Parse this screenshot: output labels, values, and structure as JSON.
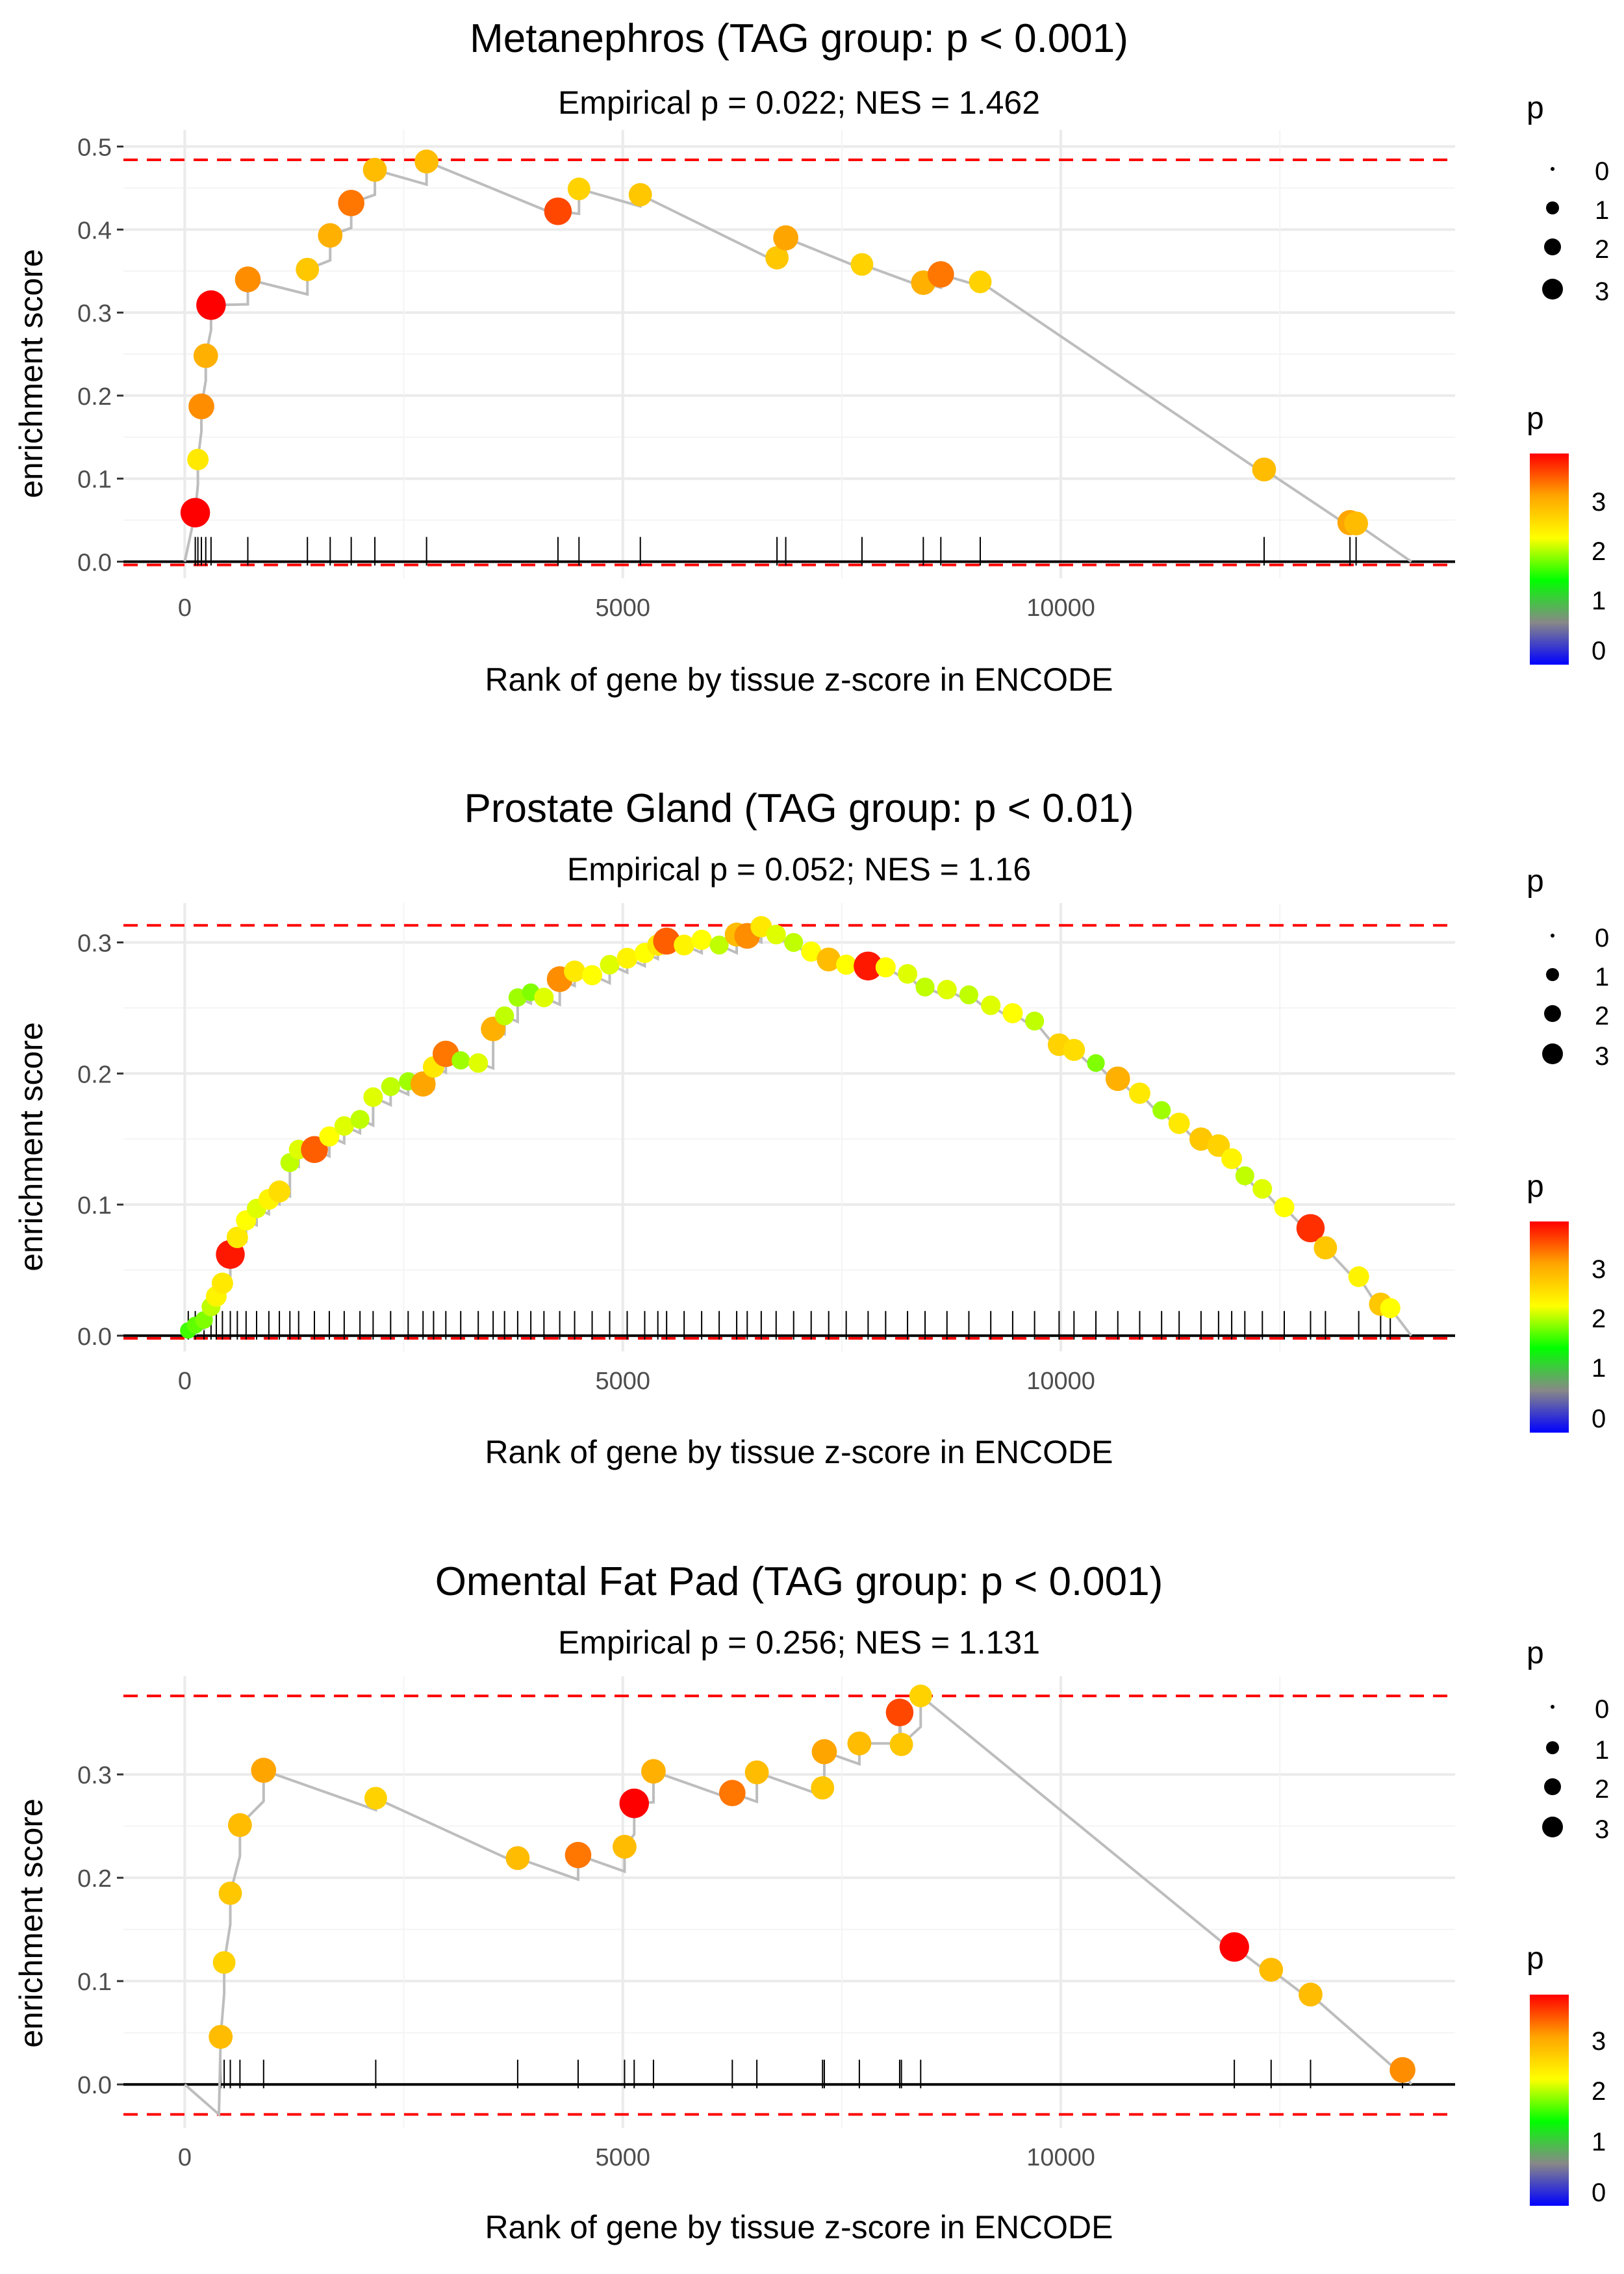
{
  "chart_data": [
    {
      "type": "scatter",
      "title": "Metanephros (TAG group: p < 0.001)",
      "subtitle": "Empirical p = 0.022; NES = 1.462",
      "xlabel": "Rank of gene by tissue z-score in ENCODE",
      "ylabel": "enrichment score",
      "xlim": [
        -700,
        14500
      ],
      "ylim": [
        -0.02,
        0.52
      ],
      "xticks": [
        0,
        5000,
        10000
      ],
      "xtick_labels": [
        "0",
        "5000",
        "10000"
      ],
      "yticks": [
        0.0,
        0.1,
        0.2,
        0.3,
        0.4,
        0.5
      ],
      "ytick_labels": [
        "0.0",
        "0.1",
        "0.2",
        "0.3",
        "0.4",
        "0.5"
      ],
      "hlines": {
        "max": 0.484,
        "min": -0.004,
        "zero": 0.0
      },
      "end_x": 14000,
      "points": [
        {
          "x": 120,
          "y": 0.059,
          "p": 3.9
        },
        {
          "x": 150,
          "y": 0.123,
          "p": 2.6
        },
        {
          "x": 190,
          "y": 0.187,
          "p": 3.3
        },
        {
          "x": 240,
          "y": 0.248,
          "p": 3.1
        },
        {
          "x": 300,
          "y": 0.309,
          "p": 3.9
        },
        {
          "x": 720,
          "y": 0.34,
          "p": 3.3
        },
        {
          "x": 1400,
          "y": 0.352,
          "p": 2.9
        },
        {
          "x": 1660,
          "y": 0.393,
          "p": 3.1
        },
        {
          "x": 1900,
          "y": 0.432,
          "p": 3.4
        },
        {
          "x": 2170,
          "y": 0.472,
          "p": 3.0
        },
        {
          "x": 2760,
          "y": 0.482,
          "p": 3.0
        },
        {
          "x": 4260,
          "y": 0.422,
          "p": 3.6
        },
        {
          "x": 4500,
          "y": 0.449,
          "p": 2.8
        },
        {
          "x": 5200,
          "y": 0.442,
          "p": 2.9
        },
        {
          "x": 6760,
          "y": 0.366,
          "p": 2.9
        },
        {
          "x": 6860,
          "y": 0.39,
          "p": 3.2
        },
        {
          "x": 7730,
          "y": 0.358,
          "p": 2.8
        },
        {
          "x": 8430,
          "y": 0.336,
          "p": 3.1
        },
        {
          "x": 8630,
          "y": 0.346,
          "p": 3.4
        },
        {
          "x": 9080,
          "y": 0.337,
          "p": 2.8
        },
        {
          "x": 12320,
          "y": 0.111,
          "p": 3.0
        },
        {
          "x": 13300,
          "y": 0.047,
          "p": 3.2
        },
        {
          "x": 13370,
          "y": 0.046,
          "p": 3.0
        }
      ]
    },
    {
      "type": "scatter",
      "title": "Prostate Gland (TAG group: p < 0.01)",
      "subtitle": "Empirical p = 0.052; NES = 1.16",
      "xlabel": "Rank of gene by tissue z-score in ENCODE",
      "ylabel": "enrichment score",
      "xlim": [
        -700,
        14500
      ],
      "ylim": [
        -0.012,
        0.33
      ],
      "xticks": [
        0,
        5000,
        10000
      ],
      "xtick_labels": [
        "0",
        "5000",
        "10000"
      ],
      "yticks": [
        0.0,
        0.1,
        0.2,
        0.3
      ],
      "ytick_labels": [
        "0.0",
        "0.1",
        "0.2",
        "0.3"
      ],
      "hlines": {
        "max": 0.313,
        "min": -0.002,
        "zero": 0.0
      },
      "end_x": 14000,
      "points": [
        {
          "x": 40,
          "y": 0.004,
          "p": 1.8
        },
        {
          "x": 120,
          "y": 0.008,
          "p": 1.9
        },
        {
          "x": 220,
          "y": 0.012,
          "p": 2.0
        },
        {
          "x": 300,
          "y": 0.022,
          "p": 2.2
        },
        {
          "x": 360,
          "y": 0.03,
          "p": 2.5
        },
        {
          "x": 430,
          "y": 0.04,
          "p": 2.6
        },
        {
          "x": 520,
          "y": 0.062,
          "p": 3.8
        },
        {
          "x": 600,
          "y": 0.075,
          "p": 2.6
        },
        {
          "x": 700,
          "y": 0.088,
          "p": 2.4
        },
        {
          "x": 820,
          "y": 0.097,
          "p": 2.3
        },
        {
          "x": 960,
          "y": 0.104,
          "p": 2.5
        },
        {
          "x": 1080,
          "y": 0.11,
          "p": 2.7
        },
        {
          "x": 1200,
          "y": 0.132,
          "p": 2.2
        },
        {
          "x": 1300,
          "y": 0.142,
          "p": 2.3
        },
        {
          "x": 1480,
          "y": 0.142,
          "p": 3.5
        },
        {
          "x": 1650,
          "y": 0.152,
          "p": 2.4
        },
        {
          "x": 1820,
          "y": 0.16,
          "p": 2.3
        },
        {
          "x": 2000,
          "y": 0.165,
          "p": 2.2
        },
        {
          "x": 2150,
          "y": 0.182,
          "p": 2.3
        },
        {
          "x": 2350,
          "y": 0.19,
          "p": 2.2
        },
        {
          "x": 2550,
          "y": 0.194,
          "p": 2.1
        },
        {
          "x": 2720,
          "y": 0.192,
          "p": 3.2
        },
        {
          "x": 2840,
          "y": 0.205,
          "p": 2.6
        },
        {
          "x": 2980,
          "y": 0.215,
          "p": 3.4
        },
        {
          "x": 3150,
          "y": 0.21,
          "p": 2.1
        },
        {
          "x": 3350,
          "y": 0.208,
          "p": 2.3
        },
        {
          "x": 3520,
          "y": 0.234,
          "p": 3.1
        },
        {
          "x": 3650,
          "y": 0.244,
          "p": 2.2
        },
        {
          "x": 3800,
          "y": 0.258,
          "p": 2.1
        },
        {
          "x": 3950,
          "y": 0.262,
          "p": 2.0
        },
        {
          "x": 4100,
          "y": 0.258,
          "p": 2.3
        },
        {
          "x": 4280,
          "y": 0.272,
          "p": 3.3
        },
        {
          "x": 4450,
          "y": 0.278,
          "p": 2.6
        },
        {
          "x": 4650,
          "y": 0.275,
          "p": 2.4
        },
        {
          "x": 4850,
          "y": 0.283,
          "p": 2.3
        },
        {
          "x": 5050,
          "y": 0.288,
          "p": 2.5
        },
        {
          "x": 5250,
          "y": 0.292,
          "p": 2.4
        },
        {
          "x": 5400,
          "y": 0.298,
          "p": 2.6
        },
        {
          "x": 5500,
          "y": 0.301,
          "p": 3.5
        },
        {
          "x": 5700,
          "y": 0.298,
          "p": 2.5
        },
        {
          "x": 5900,
          "y": 0.302,
          "p": 2.4
        },
        {
          "x": 6100,
          "y": 0.298,
          "p": 2.2
        },
        {
          "x": 6300,
          "y": 0.306,
          "p": 3.0
        },
        {
          "x": 6420,
          "y": 0.305,
          "p": 3.3
        },
        {
          "x": 6580,
          "y": 0.312,
          "p": 2.6
        },
        {
          "x": 6750,
          "y": 0.306,
          "p": 2.3
        },
        {
          "x": 6950,
          "y": 0.3,
          "p": 2.2
        },
        {
          "x": 7150,
          "y": 0.293,
          "p": 2.4
        },
        {
          "x": 7350,
          "y": 0.287,
          "p": 3.0
        },
        {
          "x": 7550,
          "y": 0.283,
          "p": 2.4
        },
        {
          "x": 7800,
          "y": 0.282,
          "p": 3.8
        },
        {
          "x": 8000,
          "y": 0.281,
          "p": 2.4
        },
        {
          "x": 8250,
          "y": 0.276,
          "p": 2.3
        },
        {
          "x": 8450,
          "y": 0.266,
          "p": 2.2
        },
        {
          "x": 8700,
          "y": 0.264,
          "p": 2.3
        },
        {
          "x": 8950,
          "y": 0.26,
          "p": 2.2
        },
        {
          "x": 9200,
          "y": 0.252,
          "p": 2.3
        },
        {
          "x": 9450,
          "y": 0.246,
          "p": 2.4
        },
        {
          "x": 9700,
          "y": 0.24,
          "p": 2.2
        },
        {
          "x": 9980,
          "y": 0.222,
          "p": 2.8
        },
        {
          "x": 10150,
          "y": 0.218,
          "p": 2.7
        },
        {
          "x": 10400,
          "y": 0.208,
          "p": 2.0
        },
        {
          "x": 10650,
          "y": 0.196,
          "p": 3.1
        },
        {
          "x": 10900,
          "y": 0.185,
          "p": 2.6
        },
        {
          "x": 11150,
          "y": 0.172,
          "p": 2.1
        },
        {
          "x": 11350,
          "y": 0.162,
          "p": 2.6
        },
        {
          "x": 11600,
          "y": 0.15,
          "p": 2.9
        },
        {
          "x": 11800,
          "y": 0.145,
          "p": 2.8
        },
        {
          "x": 11950,
          "y": 0.135,
          "p": 2.5
        },
        {
          "x": 12100,
          "y": 0.122,
          "p": 2.2
        },
        {
          "x": 12300,
          "y": 0.112,
          "p": 2.3
        },
        {
          "x": 12550,
          "y": 0.098,
          "p": 2.4
        },
        {
          "x": 12850,
          "y": 0.082,
          "p": 3.7
        },
        {
          "x": 13020,
          "y": 0.067,
          "p": 2.9
        },
        {
          "x": 13400,
          "y": 0.045,
          "p": 2.5
        },
        {
          "x": 13650,
          "y": 0.024,
          "p": 2.9
        },
        {
          "x": 13760,
          "y": 0.021,
          "p": 2.4
        }
      ]
    },
    {
      "type": "scatter",
      "title": "Omental Fat Pad (TAG group: p < 0.001)",
      "subtitle": "Empirical p = 0.256; NES = 1.131",
      "xlabel": "Rank of gene by tissue z-score in ENCODE",
      "ylabel": "enrichment score",
      "xlim": [
        -700,
        14500
      ],
      "ylim": [
        -0.042,
        0.395
      ],
      "xticks": [
        0,
        5000,
        10000
      ],
      "xtick_labels": [
        "0",
        "5000",
        "10000"
      ],
      "yticks": [
        0.0,
        0.1,
        0.2,
        0.3
      ],
      "ytick_labels": [
        "0.0",
        "0.1",
        "0.2",
        "0.3"
      ],
      "hlines": {
        "max": 0.376,
        "min": -0.029,
        "zero": 0.0
      },
      "end_x": 14000,
      "start": {
        "x": 0,
        "y": 0.0,
        "dip_x": 390,
        "dip_y": -0.029
      },
      "points": [
        {
          "x": 410,
          "y": 0.046,
          "p": 3.0
        },
        {
          "x": 450,
          "y": 0.118,
          "p": 2.8
        },
        {
          "x": 520,
          "y": 0.185,
          "p": 2.9
        },
        {
          "x": 630,
          "y": 0.251,
          "p": 3.0
        },
        {
          "x": 900,
          "y": 0.304,
          "p": 3.2
        },
        {
          "x": 2180,
          "y": 0.277,
          "p": 2.8
        },
        {
          "x": 3800,
          "y": 0.219,
          "p": 3.0
        },
        {
          "x": 4490,
          "y": 0.222,
          "p": 3.4
        },
        {
          "x": 5020,
          "y": 0.23,
          "p": 3.0
        },
        {
          "x": 5130,
          "y": 0.272,
          "p": 3.9
        },
        {
          "x": 5350,
          "y": 0.303,
          "p": 3.1
        },
        {
          "x": 6250,
          "y": 0.282,
          "p": 3.4
        },
        {
          "x": 6530,
          "y": 0.302,
          "p": 3.0
        },
        {
          "x": 7280,
          "y": 0.287,
          "p": 2.9
        },
        {
          "x": 7300,
          "y": 0.322,
          "p": 3.2
        },
        {
          "x": 7700,
          "y": 0.33,
          "p": 3.0
        },
        {
          "x": 8180,
          "y": 0.329,
          "p": 2.9
        },
        {
          "x": 8160,
          "y": 0.36,
          "p": 3.6
        },
        {
          "x": 8400,
          "y": 0.376,
          "p": 2.8
        },
        {
          "x": 11980,
          "y": 0.133,
          "p": 3.9
        },
        {
          "x": 12400,
          "y": 0.111,
          "p": 3.0
        },
        {
          "x": 12850,
          "y": 0.087,
          "p": 3.0
        },
        {
          "x": 13900,
          "y": 0.014,
          "p": 3.3
        }
      ]
    }
  ],
  "legend": {
    "size_title": "p",
    "size_labels": [
      "0",
      "1",
      "2",
      "3"
    ],
    "color_title": "p",
    "color_labels": [
      "3",
      "2",
      "1",
      "0"
    ]
  }
}
